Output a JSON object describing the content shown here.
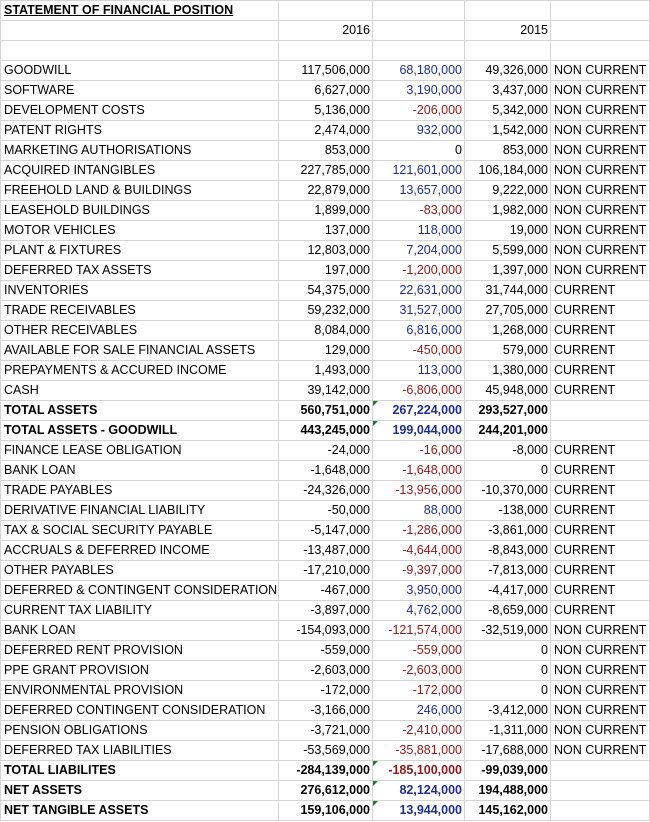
{
  "title": "STATEMENT OF FINANCIAL POSITION",
  "years": {
    "current": "2016",
    "previous": "2015"
  },
  "colors": {
    "positive_change": "#1f2f8a",
    "negative_change": "#8b1a1a"
  },
  "rows": [
    {
      "label": "GOODWILL",
      "y2016": "117,506,000",
      "change": "68,180,000",
      "y2015": "49,326,000",
      "classification": "NON CURRENT"
    },
    {
      "label": "SOFTWARE",
      "y2016": "6,627,000",
      "change": "3,190,000",
      "y2015": "3,437,000",
      "classification": "NON CURRENT"
    },
    {
      "label": "DEVELOPMENT COSTS",
      "y2016": "5,136,000",
      "change": "-206,000",
      "y2015": "5,342,000",
      "classification": "NON CURRENT"
    },
    {
      "label": "PATENT RIGHTS",
      "y2016": "2,474,000",
      "change": "932,000",
      "y2015": "1,542,000",
      "classification": "NON CURRENT"
    },
    {
      "label": "MARKETING AUTHORISATIONS",
      "y2016": "853,000",
      "change": "0",
      "y2015": "853,000",
      "classification": "NON CURRENT"
    },
    {
      "label": "ACQUIRED INTANGIBLES",
      "y2016": "227,785,000",
      "change": "121,601,000",
      "y2015": "106,184,000",
      "classification": "NON CURRENT"
    },
    {
      "label": "FREEHOLD LAND & BUILDINGS",
      "y2016": "22,879,000",
      "change": "13,657,000",
      "y2015": "9,222,000",
      "classification": "NON CURRENT"
    },
    {
      "label": "LEASEHOLD BUILDINGS",
      "y2016": "1,899,000",
      "change": "-83,000",
      "y2015": "1,982,000",
      "classification": "NON CURRENT"
    },
    {
      "label": "MOTOR VEHICLES",
      "y2016": "137,000",
      "change": "118,000",
      "y2015": "19,000",
      "classification": "NON CURRENT"
    },
    {
      "label": "PLANT & FIXTURES",
      "y2016": "12,803,000",
      "change": "7,204,000",
      "y2015": "5,599,000",
      "classification": "NON CURRENT"
    },
    {
      "label": "DEFERRED TAX ASSETS",
      "y2016": "197,000",
      "change": "-1,200,000",
      "y2015": "1,397,000",
      "classification": "NON CURRENT"
    },
    {
      "label": "INVENTORIES",
      "y2016": "54,375,000",
      "change": "22,631,000",
      "y2015": "31,744,000",
      "classification": "CURRENT"
    },
    {
      "label": "TRADE RECEIVABLES",
      "y2016": "59,232,000",
      "change": "31,527,000",
      "y2015": "27,705,000",
      "classification": "CURRENT"
    },
    {
      "label": "OTHER RECEIVABLES",
      "y2016": "8,084,000",
      "change": "6,816,000",
      "y2015": "1,268,000",
      "classification": "CURRENT"
    },
    {
      "label": "AVAILABLE FOR SALE FINANCIAL ASSETS",
      "y2016": "129,000",
      "change": "-450,000",
      "y2015": "579,000",
      "classification": "CURRENT"
    },
    {
      "label": "PREPAYMENTS & ACCURED INCOME",
      "y2016": "1,493,000",
      "change": "113,000",
      "y2015": "1,380,000",
      "classification": "CURRENT"
    },
    {
      "label": "CASH",
      "y2016": "39,142,000",
      "change": "-6,806,000",
      "y2015": "45,948,000",
      "classification": "CURRENT"
    },
    {
      "label": "TOTAL ASSETS",
      "y2016": "560,751,000",
      "change": "267,224,000",
      "y2015": "293,527,000",
      "classification": "",
      "bold": true,
      "flag": true
    },
    {
      "label": "TOTAL ASSETS - GOODWILL",
      "y2016": "443,245,000",
      "change": "199,044,000",
      "y2015": "244,201,000",
      "classification": "",
      "bold": true,
      "flag": true
    },
    {
      "label": "FINANCE LEASE OBLIGATION",
      "y2016": "-24,000",
      "change": "-16,000",
      "y2015": "-8,000",
      "classification": "CURRENT"
    },
    {
      "label": "BANK LOAN",
      "y2016": "-1,648,000",
      "change": "-1,648,000",
      "y2015": "0",
      "classification": "CURRENT"
    },
    {
      "label": "TRADE PAYABLES",
      "y2016": "-24,326,000",
      "change": "-13,956,000",
      "y2015": "-10,370,000",
      "classification": "CURRENT"
    },
    {
      "label": "DERIVATIVE FINANCIAL LIABILITY",
      "y2016": "-50,000",
      "change": "88,000",
      "y2015": "-138,000",
      "classification": "CURRENT"
    },
    {
      "label": "TAX & SOCIAL SECURITY PAYABLE",
      "y2016": "-5,147,000",
      "change": "-1,286,000",
      "y2015": "-3,861,000",
      "classification": "CURRENT"
    },
    {
      "label": "ACCRUALS & DEFERRED INCOME",
      "y2016": "-13,487,000",
      "change": "-4,644,000",
      "y2015": "-8,843,000",
      "classification": "CURRENT"
    },
    {
      "label": "OTHER PAYABLES",
      "y2016": "-17,210,000",
      "change": "-9,397,000",
      "y2015": "-7,813,000",
      "classification": "CURRENT"
    },
    {
      "label": "DEFERRED & CONTINGENT CONSIDERATION",
      "y2016": "-467,000",
      "change": "3,950,000",
      "y2015": "-4,417,000",
      "classification": "CURRENT"
    },
    {
      "label": "CURRENT TAX LIABILITY",
      "y2016": "-3,897,000",
      "change": "4,762,000",
      "y2015": "-8,659,000",
      "classification": "CURRENT"
    },
    {
      "label": "BANK LOAN",
      "y2016": "-154,093,000",
      "change": "-121,574,000",
      "y2015": "-32,519,000",
      "classification": "NON CURRENT"
    },
    {
      "label": "DEFERRED RENT PROVISION",
      "y2016": "-559,000",
      "change": "-559,000",
      "y2015": "0",
      "classification": "NON CURRENT"
    },
    {
      "label": "PPE GRANT PROVISION",
      "y2016": "-2,603,000",
      "change": "-2,603,000",
      "y2015": "0",
      "classification": "NON CURRENT"
    },
    {
      "label": "ENVIRONMENTAL PROVISION",
      "y2016": "-172,000",
      "change": "-172,000",
      "y2015": "0",
      "classification": "NON CURRENT"
    },
    {
      "label": "DEFERRED CONTINGENT CONSIDERATION",
      "y2016": "-3,166,000",
      "change": "246,000",
      "y2015": "-3,412,000",
      "classification": "NON CURRENT"
    },
    {
      "label": "PENSION OBLIGATIONS",
      "y2016": "-3,721,000",
      "change": "-2,410,000",
      "y2015": "-1,311,000",
      "classification": "NON CURRENT"
    },
    {
      "label": "DEFERRED TAX LIABILITIES",
      "y2016": "-53,569,000",
      "change": "-35,881,000",
      "y2015": "-17,688,000",
      "classification": "NON CURRENT"
    },
    {
      "label": "TOTAL LIABILITES",
      "y2016": "-284,139,000",
      "change": "-185,100,000",
      "y2015": "-99,039,000",
      "classification": "",
      "bold": true,
      "flag": true
    },
    {
      "label": "NET ASSETS",
      "y2016": "276,612,000",
      "change": "82,124,000",
      "y2015": "194,488,000",
      "classification": "",
      "bold": true,
      "flag": true
    },
    {
      "label": "NET TANGIBLE ASSETS",
      "y2016": "159,106,000",
      "change": "13,944,000",
      "y2015": "145,162,000",
      "classification": "",
      "bold": true,
      "flag": true
    }
  ]
}
